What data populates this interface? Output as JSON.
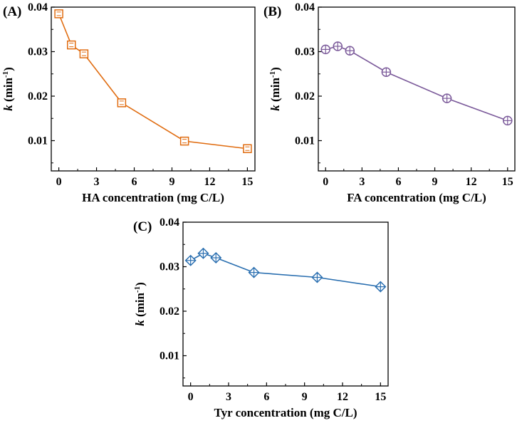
{
  "figure": {
    "panels": [
      "(A)",
      "(B)",
      "(C)"
    ]
  },
  "chart_data": [
    {
      "panel": "(A)",
      "type": "line",
      "marker": "square",
      "color": "#E06C10",
      "x": [
        0,
        1,
        2,
        5,
        10,
        15
      ],
      "series": [
        {
          "name": "HA",
          "values": [
            0.0385,
            0.0315,
            0.0295,
            0.0185,
            0.0099,
            0.0082
          ]
        }
      ],
      "xlabel": "HA concentration (mg C/L)",
      "ylabel_main": "k",
      "ylabel_unit": " (min",
      "ylabel_sup": "-1",
      "ylabel_close": ")",
      "xlim": [
        -0.6,
        15.6
      ],
      "ylim": [
        0.0032,
        0.04
      ],
      "xticks": [
        0,
        3,
        6,
        9,
        12,
        15
      ],
      "xtick_labels": [
        "0",
        "3",
        "6",
        "9",
        "12",
        "15"
      ],
      "yticks": [
        0.01,
        0.02,
        0.03,
        0.04
      ],
      "ytick_labels": [
        "0.01",
        "0.02",
        "0.03",
        "0.04"
      ]
    },
    {
      "panel": "(B)",
      "type": "line",
      "marker": "circle-plus",
      "color": "#7B5A9A",
      "x": [
        0,
        1,
        2,
        5,
        10,
        15
      ],
      "series": [
        {
          "name": "FA",
          "values": [
            0.0305,
            0.0312,
            0.0302,
            0.0254,
            0.0195,
            0.0145
          ]
        }
      ],
      "xlabel": "FA concentration (mg C/L)",
      "ylabel_main": "k",
      "ylabel_unit": " (min",
      "ylabel_sup": "-1",
      "ylabel_close": ")",
      "xlim": [
        -0.6,
        15.6
      ],
      "ylim": [
        0.0032,
        0.04
      ],
      "xticks": [
        0,
        3,
        6,
        9,
        12,
        15
      ],
      "xtick_labels": [
        "0",
        "3",
        "6",
        "9",
        "12",
        "15"
      ],
      "yticks": [
        0.01,
        0.02,
        0.03,
        0.04
      ],
      "ytick_labels": [
        "0.01",
        "0.02",
        "0.03",
        "0.04"
      ]
    },
    {
      "panel": "(C)",
      "type": "line",
      "marker": "diamond-plus",
      "color": "#2A6FB0",
      "x": [
        0,
        1,
        2,
        5,
        10,
        15
      ],
      "series": [
        {
          "name": "Tyr",
          "values": [
            0.0314,
            0.033,
            0.032,
            0.0287,
            0.0276,
            0.0255
          ]
        }
      ],
      "xlabel": "Tyr concentration (mg C/L)",
      "ylabel_main": "k",
      "ylabel_unit": " (min",
      "ylabel_sup": "-1",
      "ylabel_close": ")",
      "xlim": [
        -0.6,
        15.6
      ],
      "ylim": [
        0.0032,
        0.04
      ],
      "xticks": [
        0,
        3,
        6,
        9,
        12,
        15
      ],
      "xtick_labels": [
        "0",
        "3",
        "6",
        "9",
        "12",
        "15"
      ],
      "yticks": [
        0.01,
        0.02,
        0.03,
        0.04
      ],
      "ytick_labels": [
        "0.01",
        "0.02",
        "0.03",
        "0.04"
      ]
    }
  ]
}
